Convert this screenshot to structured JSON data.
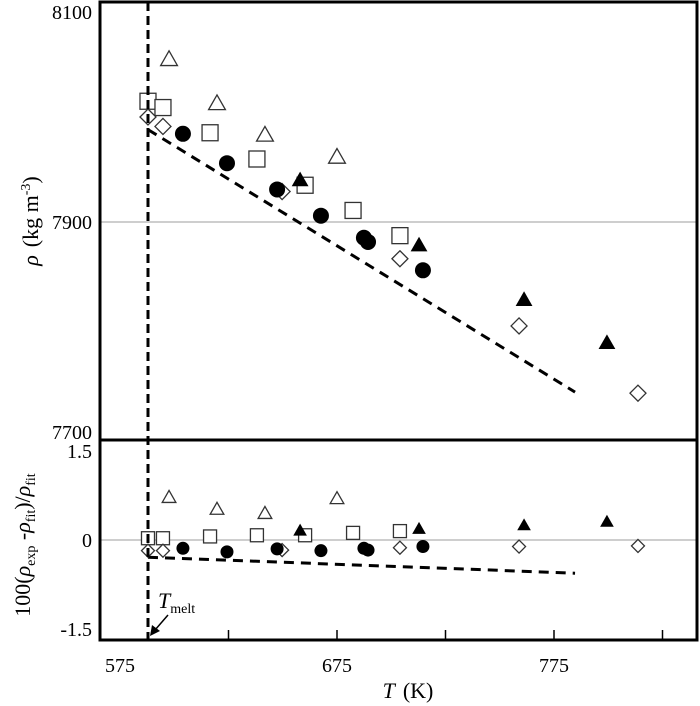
{
  "chart_data": [
    {
      "type": "scatter",
      "panel": "top",
      "ylabel": "ρ (kg m-3)",
      "ylabel_parts": {
        "symbol": "ρ",
        "unit": "(kg m",
        "exp": "-3",
        "close": ")"
      },
      "ylim": [
        7690,
        8110
      ],
      "yticks": [
        "8100",
        "7900",
        "7700"
      ],
      "ytick_values": [
        8100,
        7900,
        7700
      ],
      "grid_lines": [
        7900
      ],
      "series": [
        {
          "marker": "open-triangle",
          "x": [
            597.6,
            619.7,
            641.8,
            675.0
          ],
          "y": [
            8055,
            8013,
            7983,
            7962
          ]
        },
        {
          "marker": "open-square",
          "x": [
            587.9,
            594.8,
            616.5,
            638.1,
            660.3,
            682.4,
            704.0
          ],
          "y": [
            8015,
            8009,
            7985,
            7960,
            7935,
            7911,
            7887
          ]
        },
        {
          "marker": "open-diamond",
          "x": [
            587.9,
            594.8,
            649.7,
            704.0,
            758.9,
            813.7
          ],
          "y": [
            8000,
            7991,
            7929,
            7865,
            7801,
            7737
          ]
        },
        {
          "marker": "filled-circle",
          "x": [
            604.0,
            624.3,
            647.4,
            667.6,
            687.4,
            689.3,
            714.6
          ],
          "y": [
            7984,
            7956,
            7931,
            7906,
            7885,
            7881,
            7854
          ]
        },
        {
          "marker": "filled-triangle",
          "x": [
            658.0,
            712.8,
            761.2,
            799.4
          ],
          "y": [
            7940,
            7878,
            7826,
            7785
          ]
        }
      ],
      "fit_line": {
        "style": "dashed",
        "x": [
          587.9,
          784.7
        ],
        "y": [
          7988,
          7738
        ]
      }
    },
    {
      "type": "scatter",
      "panel": "bottom",
      "ylabel": "100(ρexp -ρfit)/ρfit",
      "ylabel_parts": {
        "a": "100(",
        "rho1": "ρ",
        "sub1": "exp",
        "b": " -",
        "rho2": "ρ",
        "sub2": "fit",
        "c": ")/",
        "rho3": "ρ",
        "sub3": "fit"
      },
      "ylim": [
        -1.7,
        1.7
      ],
      "yticks": [
        "1.5",
        "0",
        "-1.5"
      ],
      "ytick_values": [
        1.5,
        0,
        -1.5
      ],
      "grid_lines": [
        0
      ],
      "xlabel": "T (K)",
      "xlabel_parts": {
        "symbol": "T",
        "unit": "(K)"
      },
      "xlim": [
        566,
        841
      ],
      "xticks": [
        "575",
        "675",
        "775"
      ],
      "xtick_values": [
        575,
        675,
        775
      ],
      "xminor_ticks": [
        625,
        675,
        725,
        775,
        825
      ],
      "series": [
        {
          "marker": "open-triangle",
          "x": [
            597.6,
            619.7,
            641.8,
            675.0
          ],
          "y": [
            0.72,
            0.52,
            0.45,
            0.7
          ]
        },
        {
          "marker": "open-square",
          "x": [
            587.9,
            594.8,
            616.5,
            638.1,
            660.3,
            682.4,
            704.0
          ],
          "y": [
            0.03,
            0.03,
            0.06,
            0.08,
            0.08,
            0.12,
            0.15
          ]
        },
        {
          "marker": "open-diamond",
          "x": [
            587.9,
            594.8,
            649.7,
            704.0,
            758.9,
            813.7
          ],
          "y": [
            -0.18,
            -0.18,
            -0.17,
            -0.13,
            -0.11,
            -0.1
          ]
        },
        {
          "marker": "filled-circle",
          "x": [
            604.0,
            624.3,
            647.4,
            667.6,
            687.4,
            689.3,
            714.6
          ],
          "y": [
            -0.14,
            -0.2,
            -0.15,
            -0.18,
            -0.14,
            -0.17,
            -0.11
          ]
        },
        {
          "marker": "filled-triangle",
          "x": [
            658.0,
            712.8,
            761.2,
            799.4
          ],
          "y": [
            0.16,
            0.19,
            0.25,
            0.31
          ]
        }
      ],
      "fit_line": {
        "style": "dashed",
        "x": [
          587.9,
          784.7
        ],
        "y": [
          -0.29,
          -0.56
        ]
      }
    }
  ],
  "annotations": {
    "tmelt": {
      "value": 587.9,
      "symbol": "T",
      "sub": "melt"
    }
  }
}
